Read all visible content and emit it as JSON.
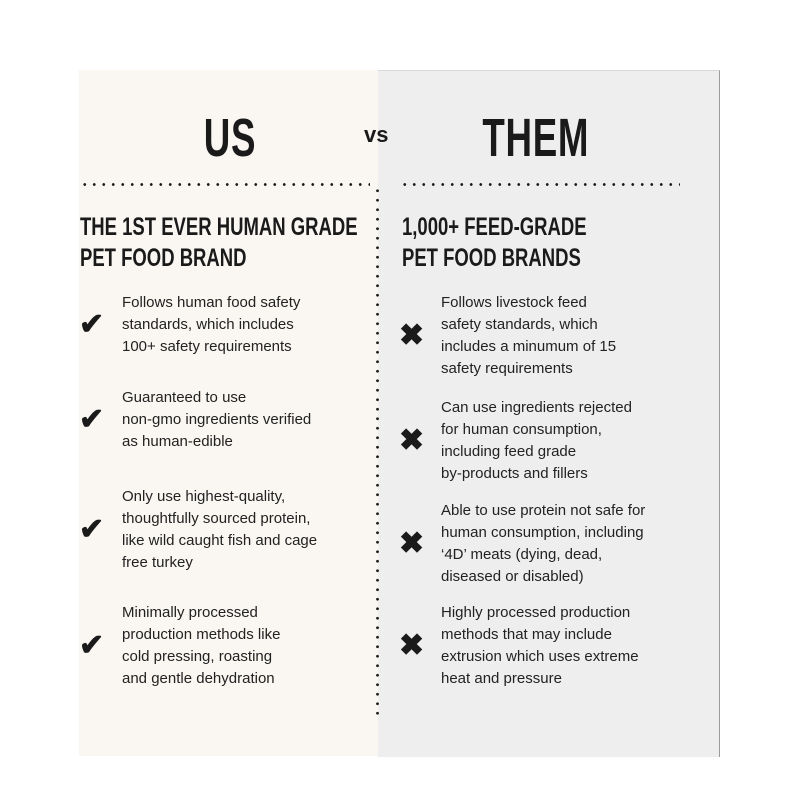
{
  "us": {
    "title": "US",
    "subtitle_lines": [
      "THE 1ST EVER HUMAN GRADE",
      "PET FOOD BRAND"
    ],
    "icon": "check-icon",
    "items": [
      [
        "Follows human food safety",
        "standards, which includes",
        "100+ safety requirements"
      ],
      [
        "Guaranteed to use",
        "non-gmo ingredients verified",
        "as human-edible"
      ],
      [
        "Only use highest-quality,",
        "thoughtfully sourced protein,",
        "like wild caught fish and cage",
        "free turkey"
      ],
      [
        "Minimally processed",
        "production methods like",
        "cold pressing, roasting",
        "and gentle dehydration"
      ]
    ]
  },
  "vs": "vs",
  "them": {
    "title": "THEM",
    "subtitle_lines": [
      "1,000+ FEED-GRADE",
      "PET FOOD BRANDS"
    ],
    "icon": "x-icon",
    "items": [
      [
        "Follows livestock feed",
        "safety standards, which",
        "includes a minumum of 15",
        "safety requirements"
      ],
      [
        "Can use ingredients rejected",
        "for human consumption,",
        "including feed grade",
        "by-products and fillers"
      ],
      [
        "Able to use protein not safe for",
        "human consumption, including",
        "‘4D’ meats (dying, dead,",
        "diseased or disabled)"
      ],
      [
        "Highly processed production",
        "methods that may include",
        "extrusion which uses extreme",
        "heat and pressure"
      ]
    ]
  },
  "colors": {
    "us_bg": "#faf7f2",
    "them_bg": "#efeeee",
    "text": "#1a1a1a"
  }
}
